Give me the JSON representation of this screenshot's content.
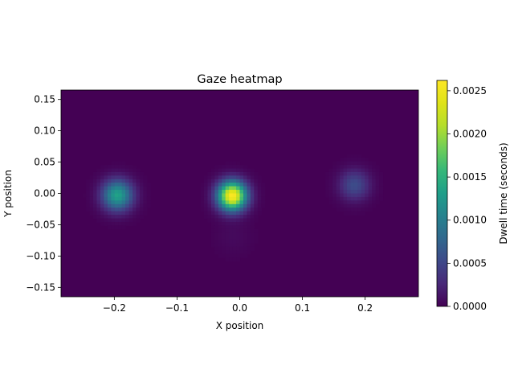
{
  "chart_data": {
    "type": "heatmap",
    "title": "Gaze heatmap",
    "xlabel": "X position",
    "ylabel": "Y position",
    "colorbar_label": "Dwell time (seconds)",
    "colormap": "viridis",
    "xlim": [
      -0.285,
      0.285
    ],
    "ylim": [
      -0.165,
      0.165
    ],
    "x_ticks": [
      -0.2,
      -0.1,
      0.0,
      0.1,
      0.2
    ],
    "x_tick_labels": [
      "−0.2",
      "−0.1",
      "0.0",
      "0.1",
      "0.2"
    ],
    "y_ticks": [
      0.15,
      0.1,
      0.05,
      0.0,
      -0.05,
      -0.1,
      -0.15
    ],
    "y_tick_labels": [
      "0.15",
      "0.10",
      "0.05",
      "0.00",
      "−0.05",
      "−0.10",
      "−0.15"
    ],
    "colorbar_range": [
      0.0,
      0.00262
    ],
    "colorbar_ticks": [
      0.0,
      0.0005,
      0.001,
      0.0015,
      0.002,
      0.0025
    ],
    "colorbar_tick_labels": [
      "0.0000",
      "0.0005",
      "0.0010",
      "0.0015",
      "0.0020",
      "0.0025"
    ],
    "hotspots": [
      {
        "x": -0.195,
        "y": -0.003,
        "peak": 0.00135,
        "spread": 0.017
      },
      {
        "x": -0.012,
        "y": -0.004,
        "peak": 0.00262,
        "spread": 0.016
      },
      {
        "x": 0.183,
        "y": 0.013,
        "peak": 0.00055,
        "spread": 0.017
      },
      {
        "x": -0.01,
        "y": -0.07,
        "peak": 6e-05,
        "spread": 0.02
      }
    ],
    "grid": false
  }
}
